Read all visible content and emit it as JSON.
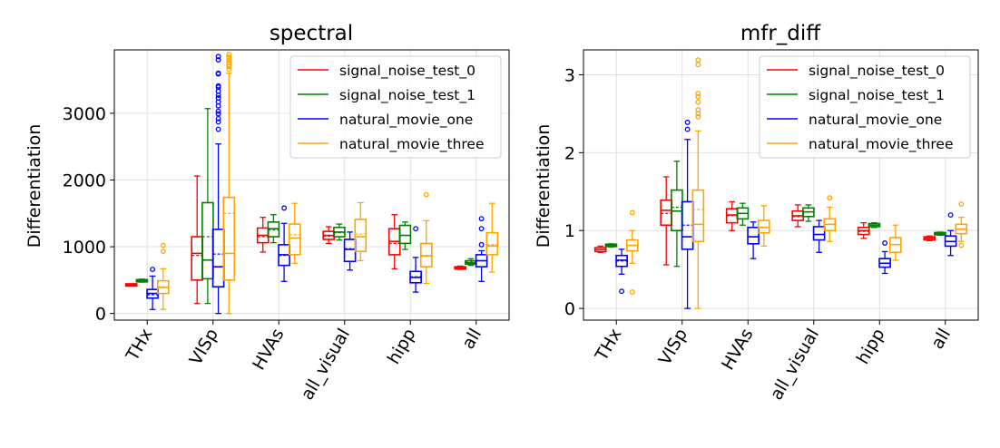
{
  "chart_data": [
    {
      "type": "box",
      "title": "spectral",
      "xlabel": "",
      "ylabel": "Differentiation",
      "categories": [
        "THx",
        "VISp",
        "HVAs",
        "all_visual",
        "hipp",
        "all"
      ],
      "ylim": [
        -100,
        3950
      ],
      "yticks": [
        0,
        1000,
        2000,
        3000
      ],
      "yticklabels": [
        "0",
        "1000",
        "2000",
        "3000"
      ],
      "grid": true,
      "legend_position": "top-right",
      "series": [
        {
          "name": "signal_noise_test_0",
          "color": "#ff0000",
          "boxes": [
            {
              "whislo": 420,
              "q1": 422,
              "med": 428,
              "mean": 428,
              "q3": 433,
              "whishi": 438,
              "fliers": []
            },
            {
              "whislo": 150,
              "q1": 500,
              "med": 900,
              "mean": 870,
              "q3": 1150,
              "whishi": 2060,
              "fliers": []
            },
            {
              "whislo": 920,
              "q1": 1060,
              "med": 1170,
              "mean": 1150,
              "q3": 1280,
              "whishi": 1440,
              "fliers": []
            },
            {
              "whislo": 1050,
              "q1": 1110,
              "med": 1170,
              "mean": 1160,
              "q3": 1230,
              "whishi": 1300,
              "fliers": []
            },
            {
              "whislo": 670,
              "q1": 880,
              "med": 1080,
              "mean": 1050,
              "q3": 1270,
              "whishi": 1480,
              "fliers": []
            },
            {
              "whislo": 660,
              "q1": 670,
              "med": 680,
              "mean": 680,
              "q3": 695,
              "whishi": 710,
              "fliers": []
            }
          ]
        },
        {
          "name": "signal_noise_test_1",
          "color": "#008000",
          "boxes": [
            {
              "whislo": 470,
              "q1": 478,
              "med": 490,
              "mean": 490,
              "q3": 503,
              "whishi": 515,
              "fliers": []
            },
            {
              "whislo": 150,
              "q1": 520,
              "med": 800,
              "mean": 1150,
              "q3": 1660,
              "whishi": 3070,
              "fliers": []
            },
            {
              "whislo": 1060,
              "q1": 1150,
              "med": 1270,
              "mean": 1250,
              "q3": 1370,
              "whishi": 1480,
              "fliers": []
            },
            {
              "whislo": 1100,
              "q1": 1150,
              "med": 1220,
              "mean": 1210,
              "q3": 1290,
              "whishi": 1340,
              "fliers": []
            },
            {
              "whislo": 960,
              "q1": 1050,
              "med": 1170,
              "mean": 1170,
              "q3": 1320,
              "whishi": 1370,
              "fliers": []
            },
            {
              "whislo": 720,
              "q1": 740,
              "med": 760,
              "mean": 770,
              "q3": 790,
              "whishi": 820,
              "fliers": []
            }
          ]
        },
        {
          "name": "natural_movie_one",
          "color": "#0000ff",
          "boxes": [
            {
              "whislo": 60,
              "q1": 230,
              "med": 300,
              "mean": 280,
              "q3": 360,
              "whishi": 560,
              "fliers": [
                660
              ]
            },
            {
              "whislo": 0,
              "q1": 400,
              "med": 700,
              "mean": 890,
              "q3": 1260,
              "whishi": 2540,
              "fliers": [
                2760,
                2870,
                2920,
                2990,
                3030,
                3110,
                3170,
                3230,
                3270,
                3330,
                3390,
                3410,
                3590,
                3600,
                3800,
                3850
              ]
            },
            {
              "whislo": 480,
              "q1": 720,
              "med": 880,
              "mean": 870,
              "q3": 1030,
              "whishi": 1350,
              "fliers": [
                1580
              ]
            },
            {
              "whislo": 650,
              "q1": 780,
              "med": 960,
              "mean": 970,
              "q3": 1110,
              "whishi": 1220,
              "fliers": []
            },
            {
              "whislo": 320,
              "q1": 460,
              "med": 540,
              "mean": 550,
              "q3": 630,
              "whishi": 840,
              "fliers": [
                1270
              ]
            },
            {
              "whislo": 480,
              "q1": 700,
              "med": 790,
              "mean": 790,
              "q3": 880,
              "whishi": 940,
              "fliers": [
                1030,
                1270,
                1420
              ]
            }
          ]
        },
        {
          "name": "natural_movie_three",
          "color": "#ffa500",
          "boxes": [
            {
              "whislo": 60,
              "q1": 300,
              "med": 390,
              "mean": 400,
              "q3": 490,
              "whishi": 670,
              "fliers": [
                930,
                1020
              ]
            },
            {
              "whislo": 0,
              "q1": 500,
              "med": 900,
              "mean": 1500,
              "q3": 1740,
              "whishi": 3600,
              "fliers": [
                3660,
                3700,
                3730,
                3760,
                3800,
                3840,
                3880
              ]
            },
            {
              "whislo": 750,
              "q1": 880,
              "med": 1130,
              "mean": 1180,
              "q3": 1340,
              "whishi": 1650,
              "fliers": []
            },
            {
              "whislo": 790,
              "q1": 930,
              "med": 1150,
              "mean": 1190,
              "q3": 1410,
              "whishi": 1660,
              "fliers": []
            },
            {
              "whislo": 450,
              "q1": 700,
              "med": 860,
              "mean": 870,
              "q3": 1050,
              "whishi": 1390,
              "fliers": [
                1780
              ]
            },
            {
              "whislo": 620,
              "q1": 880,
              "med": 1010,
              "mean": 1030,
              "q3": 1210,
              "whishi": 1650,
              "fliers": []
            }
          ]
        }
      ]
    },
    {
      "type": "box",
      "title": "mfr_diff",
      "xlabel": "",
      "ylabel": "Differentiation",
      "categories": [
        "THx",
        "VISp",
        "HVAs",
        "all_visual",
        "hipp",
        "all"
      ],
      "ylim": [
        -0.15,
        3.32
      ],
      "yticks": [
        0,
        1,
        2,
        3
      ],
      "yticklabels": [
        "0",
        "1",
        "2",
        "3"
      ],
      "grid": true,
      "legend_position": "top-right",
      "series": [
        {
          "name": "signal_noise_test_0",
          "color": "#ff0000",
          "boxes": [
            {
              "whislo": 0.72,
              "q1": 0.73,
              "med": 0.755,
              "mean": 0.755,
              "q3": 0.78,
              "whishi": 0.8,
              "fliers": []
            },
            {
              "whislo": 0.56,
              "q1": 1.07,
              "med": 1.26,
              "mean": 1.22,
              "q3": 1.39,
              "whishi": 1.69,
              "fliers": []
            },
            {
              "whislo": 1.0,
              "q1": 1.1,
              "med": 1.2,
              "mean": 1.19,
              "q3": 1.28,
              "whishi": 1.37,
              "fliers": []
            },
            {
              "whislo": 1.05,
              "q1": 1.13,
              "med": 1.19,
              "mean": 1.18,
              "q3": 1.25,
              "whishi": 1.33,
              "fliers": []
            },
            {
              "whislo": 0.9,
              "q1": 0.95,
              "med": 1.0,
              "mean": 0.99,
              "q3": 1.04,
              "whishi": 1.1,
              "fliers": []
            },
            {
              "whislo": 0.87,
              "q1": 0.88,
              "med": 0.9,
              "mean": 0.9,
              "q3": 0.92,
              "whishi": 0.93,
              "fliers": []
            }
          ]
        },
        {
          "name": "signal_noise_test_1",
          "color": "#008000",
          "boxes": [
            {
              "whislo": 0.79,
              "q1": 0.8,
              "med": 0.81,
              "mean": 0.81,
              "q3": 0.82,
              "whishi": 0.83,
              "fliers": []
            },
            {
              "whislo": 0.54,
              "q1": 1.0,
              "med": 1.25,
              "mean": 1.3,
              "q3": 1.52,
              "whishi": 1.89,
              "fliers": []
            },
            {
              "whislo": 1.07,
              "q1": 1.15,
              "med": 1.22,
              "mean": 1.22,
              "q3": 1.29,
              "whishi": 1.35,
              "fliers": []
            },
            {
              "whislo": 1.12,
              "q1": 1.18,
              "med": 1.24,
              "mean": 1.24,
              "q3": 1.29,
              "whishi": 1.33,
              "fliers": []
            },
            {
              "whislo": 1.04,
              "q1": 1.05,
              "med": 1.07,
              "mean": 1.07,
              "q3": 1.09,
              "whishi": 1.1,
              "fliers": []
            },
            {
              "whislo": 0.94,
              "q1": 0.95,
              "med": 0.96,
              "mean": 0.96,
              "q3": 0.97,
              "whishi": 0.98,
              "fliers": []
            }
          ]
        },
        {
          "name": "natural_movie_one",
          "color": "#0000ff",
          "boxes": [
            {
              "whislo": 0.44,
              "q1": 0.54,
              "med": 0.62,
              "mean": 0.61,
              "q3": 0.68,
              "whishi": 0.76,
              "fliers": [
                0.22
              ]
            },
            {
              "whislo": 0.0,
              "q1": 0.76,
              "med": 0.92,
              "mean": 1.07,
              "q3": 1.37,
              "whishi": 2.17,
              "fliers": [
                2.3,
                2.39
              ]
            },
            {
              "whislo": 0.64,
              "q1": 0.83,
              "med": 0.92,
              "mean": 0.92,
              "q3": 1.04,
              "whishi": 1.11,
              "fliers": []
            },
            {
              "whislo": 0.72,
              "q1": 0.88,
              "med": 0.95,
              "mean": 0.95,
              "q3": 1.05,
              "whishi": 1.13,
              "fliers": []
            },
            {
              "whislo": 0.45,
              "q1": 0.53,
              "med": 0.58,
              "mean": 0.58,
              "q3": 0.64,
              "whishi": 0.73,
              "fliers": [
                0.84
              ]
            },
            {
              "whislo": 0.68,
              "q1": 0.8,
              "med": 0.86,
              "mean": 0.86,
              "q3": 0.93,
              "whishi": 1.0,
              "fliers": [
                1.2
              ]
            }
          ]
        },
        {
          "name": "natural_movie_three",
          "color": "#ffa500",
          "boxes": [
            {
              "whislo": 0.58,
              "q1": 0.74,
              "med": 0.81,
              "mean": 0.81,
              "q3": 0.88,
              "whishi": 1.0,
              "fliers": [
                0.21,
                1.23
              ]
            },
            {
              "whislo": 0.0,
              "q1": 0.86,
              "med": 1.08,
              "mean": 1.27,
              "q3": 1.52,
              "whishi": 2.28,
              "fliers": [
                2.46,
                2.5,
                2.55,
                2.65,
                2.72,
                2.76,
                3.13,
                3.19
              ]
            },
            {
              "whislo": 0.8,
              "q1": 0.97,
              "med": 1.04,
              "mean": 1.04,
              "q3": 1.13,
              "whishi": 1.32,
              "fliers": []
            },
            {
              "whislo": 0.86,
              "q1": 1.0,
              "med": 1.08,
              "mean": 1.08,
              "q3": 1.15,
              "whishi": 1.3,
              "fliers": [
                1.42
              ]
            },
            {
              "whislo": 0.62,
              "q1": 0.72,
              "med": 0.82,
              "mean": 0.82,
              "q3": 0.91,
              "whishi": 1.07,
              "fliers": []
            },
            {
              "whislo": 0.86,
              "q1": 0.96,
              "med": 1.02,
              "mean": 1.02,
              "q3": 1.08,
              "whishi": 1.17,
              "fliers": [
                0.81,
                1.34
              ]
            }
          ]
        }
      ]
    }
  ]
}
